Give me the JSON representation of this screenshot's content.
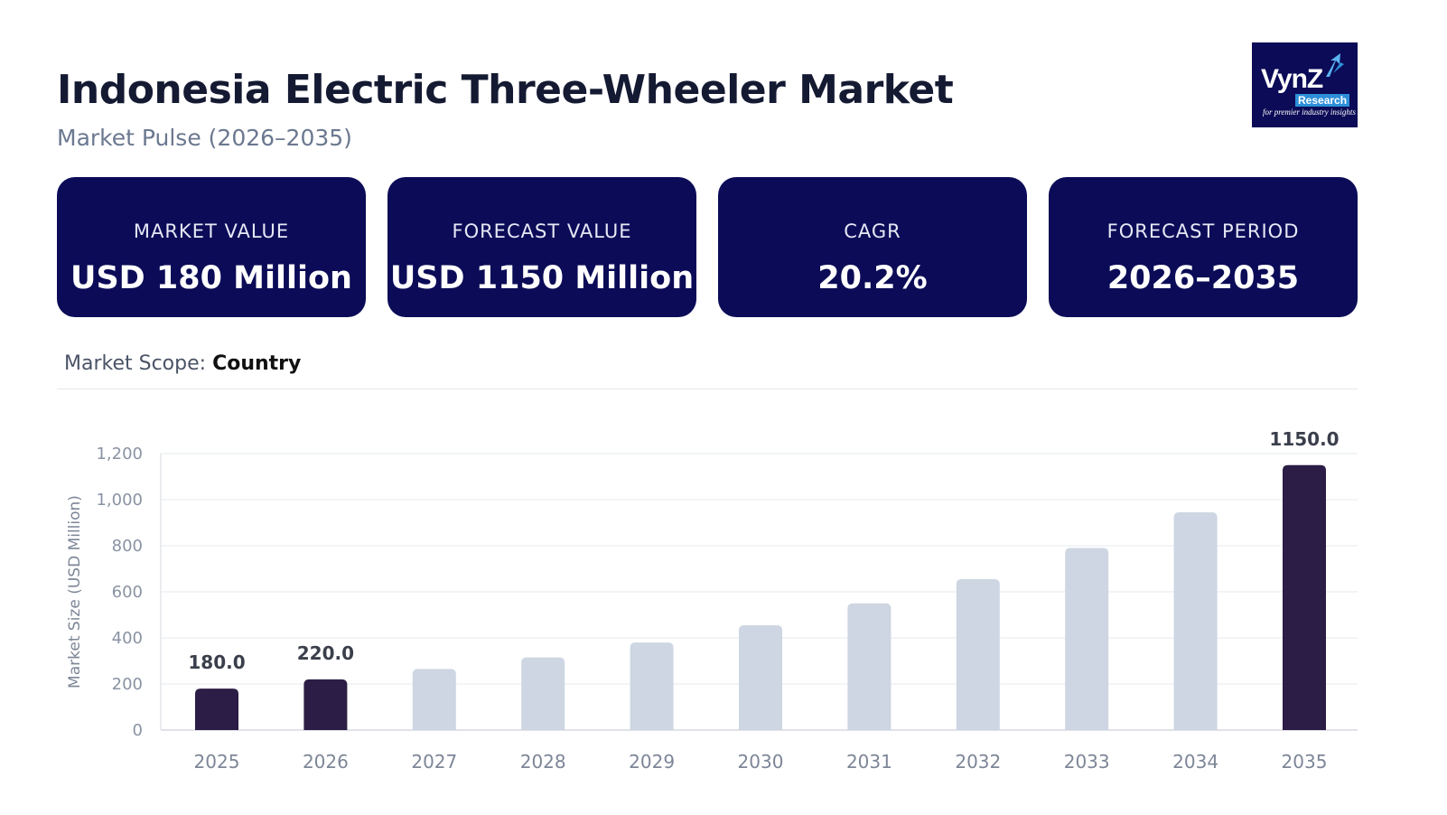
{
  "header": {
    "title": "Indonesia Electric Three-Wheeler Market",
    "subtitle": "Market Pulse (2026–2035)"
  },
  "logo": {
    "brand": "VynZ",
    "sub": "Research",
    "tagline": "for premier industry insights"
  },
  "kpis": [
    {
      "label": "MARKET VALUE",
      "value": "USD 180 Million"
    },
    {
      "label": "FORECAST VALUE",
      "value": "USD 1150 Million"
    },
    {
      "label": "CAGR",
      "value": "20.2%"
    },
    {
      "label": "FORECAST PERIOD",
      "value": "2026–2035"
    }
  ],
  "scope": {
    "label": "Market Scope:",
    "value": "Country"
  },
  "colors": {
    "highlight": "#2b1d45",
    "muted": "#cdd6e2",
    "card": "#0b0b57"
  },
  "chart_data": {
    "type": "bar",
    "categories": [
      "2025",
      "2026",
      "2027",
      "2028",
      "2029",
      "2030",
      "2031",
      "2032",
      "2033",
      "2034",
      "2035"
    ],
    "values": [
      180,
      220,
      265,
      315,
      380,
      455,
      550,
      655,
      790,
      945,
      1150
    ],
    "highlighted": [
      true,
      true,
      false,
      false,
      false,
      false,
      false,
      false,
      false,
      false,
      true
    ],
    "data_labels": [
      "180.0",
      "220.0",
      "",
      "",
      "",
      "",
      "",
      "",
      "",
      "",
      "1150.0"
    ],
    "xlabel": "",
    "ylabel": "Market Size (USD Million)",
    "ylim": [
      0,
      1200
    ],
    "yticks": [
      0,
      200,
      400,
      600,
      800,
      1000,
      1200
    ],
    "ytick_labels": [
      "0",
      "200",
      "400",
      "600",
      "800",
      "1,000",
      "1,200"
    ],
    "grid": true
  }
}
